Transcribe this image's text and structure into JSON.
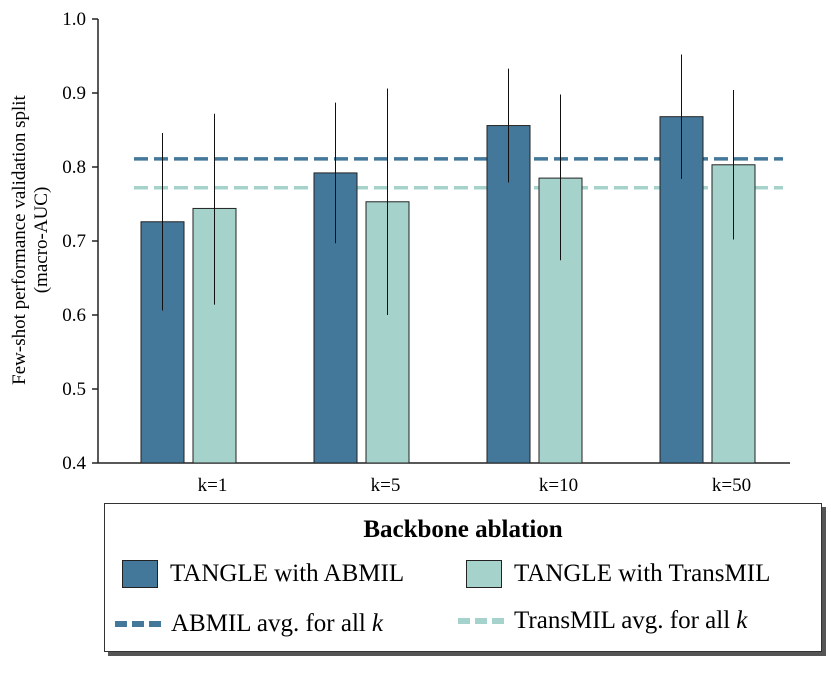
{
  "chart_data": {
    "type": "bar",
    "categories": [
      "k=1",
      "k=5",
      "k=10",
      "k=50"
    ],
    "series": [
      {
        "name": "TANGLE with ABMIL",
        "color": "#44789b",
        "values": [
          0.726,
          0.792,
          0.856,
          0.868
        ],
        "err_low": [
          0.606,
          0.697,
          0.779,
          0.784
        ],
        "err_high": [
          0.846,
          0.887,
          0.933,
          0.952
        ]
      },
      {
        "name": "TANGLE with TransMIL",
        "color": "#a5d3cb",
        "values": [
          0.744,
          0.753,
          0.785,
          0.803
        ],
        "err_low": [
          0.614,
          0.6,
          0.674,
          0.702
        ],
        "err_high": [
          0.872,
          0.906,
          0.898,
          0.904
        ]
      }
    ],
    "reference_lines": [
      {
        "name": "ABMIL avg. for all",
        "value": 0.811,
        "color": "#44789b",
        "style": "dashed"
      },
      {
        "name": "TransMIL avg. for all",
        "value": 0.772,
        "color": "#a5d3cb",
        "style": "dashed"
      }
    ],
    "ylim": [
      0.4,
      1.0
    ],
    "yticks": [
      "0.4",
      "0.5",
      "0.6",
      "0.7",
      "0.8",
      "0.9",
      "1.0"
    ],
    "ylabel_line1": "Few-shot performance validation split",
    "ylabel_line2": "(macro-AUC)",
    "xlabel": "",
    "grid": false,
    "legend_position": "bottom"
  },
  "legend": {
    "title": "Backbone ablation",
    "item_abmil": "TANGLE with ABMIL",
    "item_transmil": "TANGLE with TransMIL",
    "line_abmil": "ABMIL avg. for all",
    "line_transmil": "TransMIL avg. for all",
    "k_symbol": "k"
  }
}
